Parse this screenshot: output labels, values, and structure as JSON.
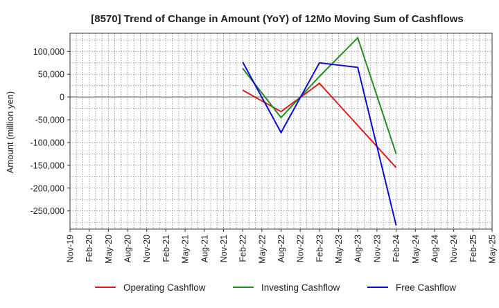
{
  "chart_data": {
    "type": "line",
    "title": "[8570]  Trend of Change in Amount (YoY) of 12Mo Moving Sum of Cashflows",
    "xlabel": "",
    "ylabel": "Amount (million yen)",
    "ylim": [
      -290000,
      140000
    ],
    "yticks": [
      100000,
      50000,
      0,
      -50000,
      -100000,
      -150000,
      -200000,
      -250000
    ],
    "ytick_labels": [
      "100,000",
      "50,000",
      "0",
      "-50,000",
      "-100,000",
      "-150,000",
      "-200,000",
      "-250,000"
    ],
    "categories": [
      "Nov-19",
      "Feb-20",
      "May-20",
      "Aug-20",
      "Nov-20",
      "Feb-21",
      "May-21",
      "Aug-21",
      "Nov-21",
      "Feb-22",
      "May-22",
      "Aug-22",
      "Nov-22",
      "Feb-23",
      "May-23",
      "Aug-23",
      "Nov-23",
      "Feb-24",
      "May-24",
      "Aug-24",
      "Nov-24",
      "Feb-25",
      "May-25"
    ],
    "grid": true,
    "legend_position": "bottom",
    "series": [
      {
        "name": "Operating Cashflow",
        "color": "#e31a1c",
        "values": [
          null,
          null,
          null,
          null,
          null,
          null,
          null,
          null,
          null,
          15000,
          null,
          -32000,
          null,
          30000,
          null,
          null,
          null,
          -155000,
          null,
          null,
          null,
          null,
          null
        ]
      },
      {
        "name": "Investing Cashflow",
        "color": "#238b22",
        "values": [
          null,
          null,
          null,
          null,
          null,
          null,
          null,
          null,
          null,
          63000,
          null,
          -45000,
          null,
          45000,
          null,
          130000,
          null,
          -125000,
          null,
          null,
          null,
          null,
          null
        ]
      },
      {
        "name": "Free Cashflow",
        "color": "#0b0bd0",
        "values": [
          null,
          null,
          null,
          null,
          null,
          null,
          null,
          null,
          null,
          77000,
          null,
          -78000,
          null,
          75000,
          null,
          65000,
          null,
          -282000,
          null,
          null,
          null,
          null,
          null
        ]
      }
    ]
  }
}
